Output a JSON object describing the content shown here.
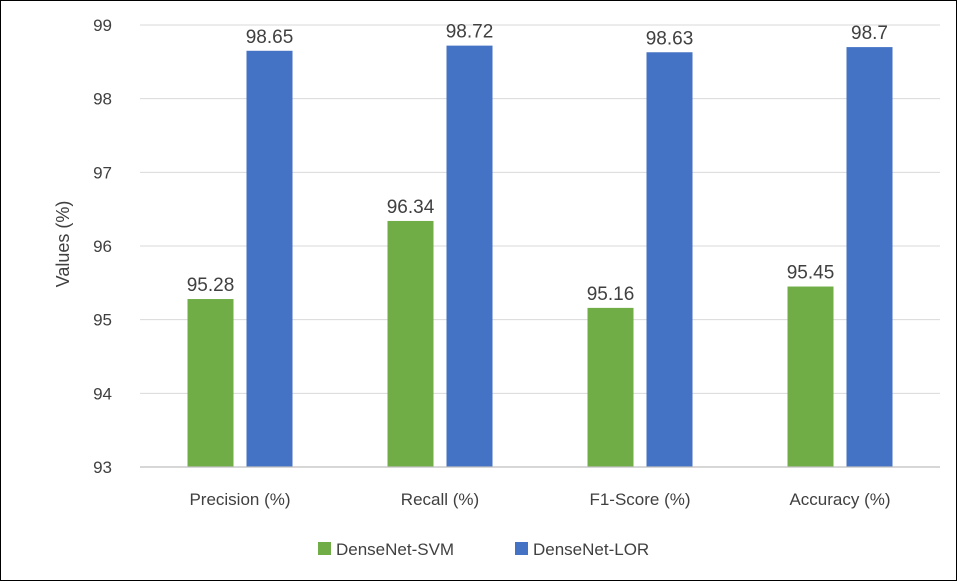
{
  "chart_data": {
    "type": "bar",
    "title": "",
    "xlabel": "",
    "ylabel": "Values (%)",
    "ylim": [
      93,
      99
    ],
    "yticks": [
      93,
      94,
      95,
      96,
      97,
      98,
      99
    ],
    "grid": true,
    "legend_position": "bottom",
    "categories": [
      "Precision (%)",
      "Recall (%)",
      "F1-Score (%)",
      "Accuracy (%)"
    ],
    "series": [
      {
        "name": "DenseNet-SVM",
        "color": "#70ad47",
        "values": [
          95.28,
          96.34,
          95.16,
          95.45
        ]
      },
      {
        "name": "DenseNet-LOR",
        "color": "#4472c4",
        "values": [
          98.65,
          98.72,
          98.63,
          98.7
        ]
      }
    ]
  }
}
